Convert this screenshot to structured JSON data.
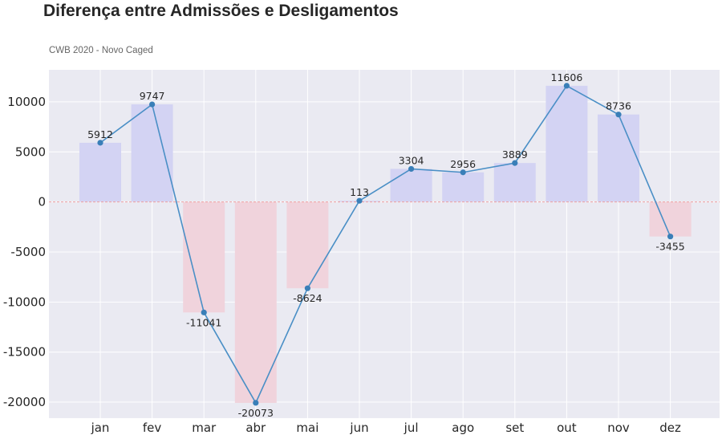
{
  "chart_data": {
    "type": "bar",
    "title": "Diferença entre Admissões e Desligamentos",
    "subtitle": "CWB 2020 - Novo Caged",
    "categories": [
      "jan",
      "fev",
      "mar",
      "abr",
      "mai",
      "jun",
      "jul",
      "ago",
      "set",
      "out",
      "nov",
      "dez"
    ],
    "values": [
      5912,
      9747,
      -11041,
      -20073,
      -8624,
      113,
      3304,
      2956,
      3889,
      11606,
      8736,
      -3455
    ],
    "overlay": "line-with-markers",
    "ylim": [
      -21600,
      13200
    ],
    "yticks": [
      -20000,
      -15000,
      -10000,
      -5000,
      0,
      5000,
      10000
    ],
    "zero_line": "dashed",
    "grid": true,
    "colors": {
      "positive_bar": "#d3d3f3",
      "negative_bar": "#f0d3dc",
      "line": "#4a8fc6",
      "marker": "#3a7fb8",
      "zero_line": "#f0a0a0",
      "background": "#eaeaf2",
      "grid": "#ffffff"
    }
  }
}
